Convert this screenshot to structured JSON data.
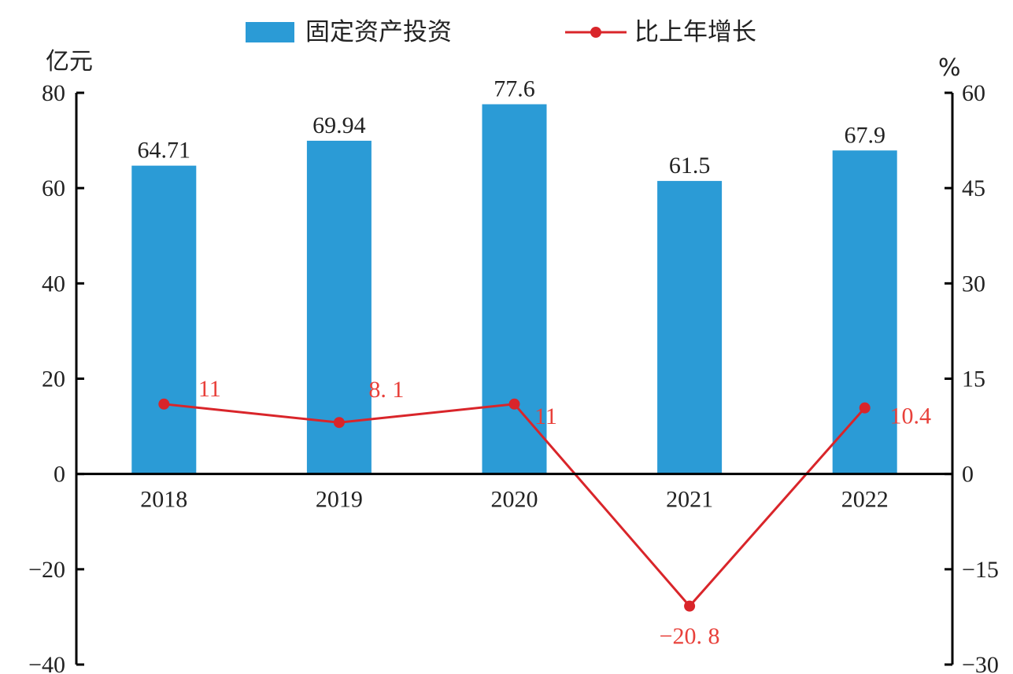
{
  "chart_data": {
    "type": "bar",
    "categories": [
      "2018",
      "2019",
      "2020",
      "2021",
      "2022"
    ],
    "series": [
      {
        "name": "固定资产投资",
        "type": "bar",
        "axis": "left",
        "values": [
          64.71,
          69.94,
          77.6,
          61.5,
          67.9
        ],
        "labels": [
          "64.71",
          "69.94",
          "77.6",
          "61.5",
          "67.9"
        ],
        "color": "#2b9bd6"
      },
      {
        "name": "比上年增长",
        "type": "line",
        "axis": "right",
        "values": [
          11,
          8.1,
          11,
          -20.8,
          10.4
        ],
        "labels": [
          "11",
          "8. 1",
          "11",
          "−20. 8",
          "10.4"
        ],
        "color": "#d9252a"
      }
    ],
    "left_axis": {
      "unit": "亿元",
      "ylim": [
        -40,
        80
      ],
      "ticks": [
        "80",
        "60",
        "40",
        "20",
        "0",
        "−20",
        "−40"
      ]
    },
    "right_axis": {
      "unit": "%",
      "ylim": [
        -30,
        60
      ],
      "ticks": [
        "60",
        "45",
        "30",
        "15",
        "0",
        "−15",
        "−30"
      ]
    },
    "legend": {
      "position": "top-center"
    },
    "grid": false
  }
}
